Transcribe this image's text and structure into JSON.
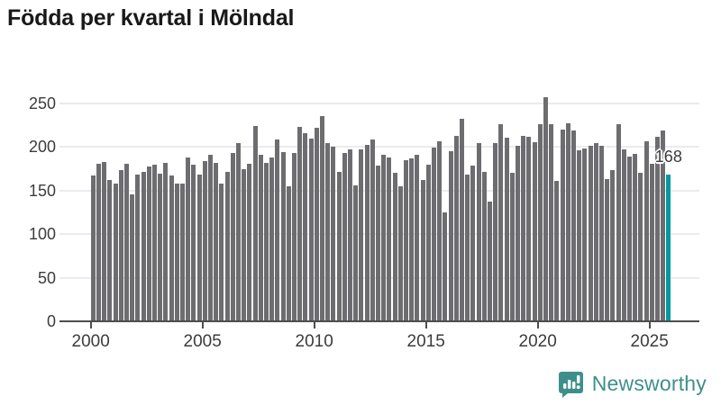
{
  "header": {
    "title": "Födda per kvartal i Mölndal"
  },
  "chart_data": {
    "type": "bar",
    "title": "Födda per kvartal i Mölndal",
    "xlabel": "",
    "ylabel": "",
    "period": "quarterly",
    "x_start": "2000 Q1",
    "x_end": "2025 Q4",
    "x_tick_labels": [
      "2000",
      "2005",
      "2010",
      "2015",
      "2020",
      "2025"
    ],
    "y_ticks": [
      0,
      50,
      100,
      150,
      200,
      250
    ],
    "ylim": [
      0,
      265
    ],
    "grid": true,
    "legend": false,
    "series": [
      {
        "name": "Födda",
        "values": [
          167,
          181,
          183,
          162,
          158,
          174,
          181,
          146,
          168,
          171,
          178,
          180,
          169,
          182,
          167,
          158,
          158,
          188,
          180,
          168,
          184,
          191,
          182,
          158,
          171,
          193,
          204,
          175,
          181,
          224,
          191,
          182,
          188,
          209,
          194,
          155,
          193,
          223,
          216,
          210,
          222,
          236,
          205,
          200,
          171,
          193,
          197,
          156,
          197,
          202,
          209,
          179,
          191,
          188,
          170,
          155,
          185,
          187,
          191,
          162,
          180,
          199,
          207,
          125,
          195,
          213,
          232,
          168,
          179,
          205,
          171,
          137,
          204,
          226,
          211,
          170,
          201,
          213,
          212,
          206,
          226,
          257,
          226,
          161,
          220,
          227,
          219,
          196,
          198,
          201,
          204,
          201,
          163,
          174,
          226,
          197,
          189,
          192,
          170,
          207,
          181,
          212,
          219,
          168
        ]
      }
    ],
    "highlight_index": 103,
    "highlight_label": "168"
  },
  "footer": {
    "brand": "Newsworthy"
  },
  "colors": {
    "bar": "#6d6d71",
    "highlight": "#0099a0",
    "grid": "#ebebeb",
    "axis": "#4d4d50",
    "text": "#3c3c3c",
    "title": "#191919",
    "logo": "#3e8f8b"
  }
}
